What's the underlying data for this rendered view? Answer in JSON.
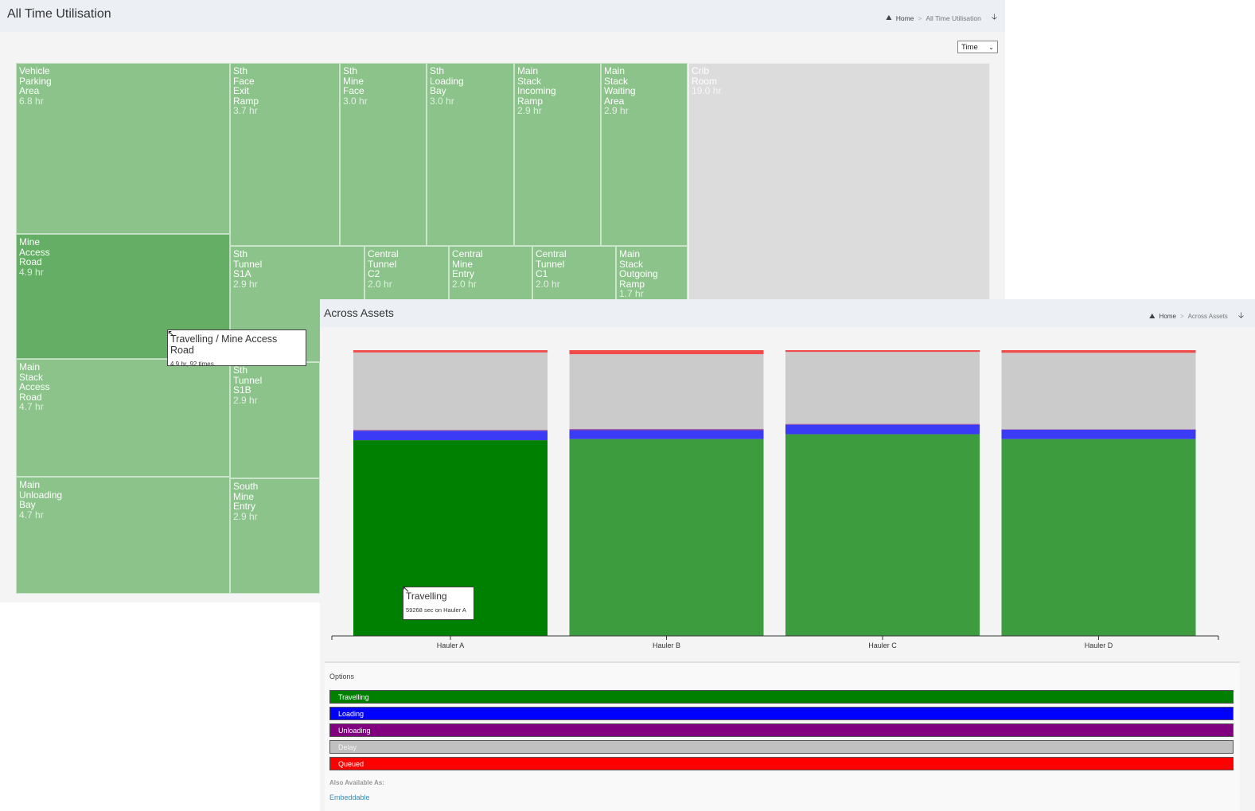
{
  "utilisation": {
    "title": "All Time Utilisation",
    "breadcrumb": {
      "home": "Home",
      "current": "All Time Utilisation"
    },
    "select": {
      "value": "Time"
    },
    "treemap": [
      {
        "name": "Vehicle Parking Area",
        "value": "6.8 hr"
      },
      {
        "name": "Mine Access Road",
        "value": "4.9 hr"
      },
      {
        "name": "Main Stack Access Road",
        "value": "4.7 hr"
      },
      {
        "name": "Main Unloading Bay",
        "value": "4.7 hr"
      },
      {
        "name": "Sth Face Exit Ramp",
        "value": "3.7 hr"
      },
      {
        "name": "Sth Mine Face",
        "value": "3.0 hr"
      },
      {
        "name": "Sth Loading Bay",
        "value": "3.0 hr"
      },
      {
        "name": "Main Stack Incoming Ramp",
        "value": "2.9 hr"
      },
      {
        "name": "Main Stack Waiting Area",
        "value": "2.9 hr"
      },
      {
        "name": "Sth Tunnel S1A",
        "value": "2.9 hr"
      },
      {
        "name": "Central Tunnel C2",
        "value": "2.0 hr"
      },
      {
        "name": "Central Mine Entry",
        "value": "2.0 hr"
      },
      {
        "name": "Central Tunnel C1",
        "value": "2.0 hr"
      },
      {
        "name": "Main Stack Outgoing Ramp",
        "value": "1.7 hr"
      },
      {
        "name": "Sth Tunnel S1B",
        "value": "2.9 hr"
      },
      {
        "name": "South Mine Entry",
        "value": "2.9 hr"
      },
      {
        "name": "Crib Room",
        "value": "19.0 hr"
      }
    ],
    "tooltip": {
      "title": "Travelling / Mine Access Road",
      "detail": "4.9 hr, 92 times"
    }
  },
  "assets": {
    "title": "Across Assets",
    "breadcrumb": {
      "home": "Home",
      "current": "Across Assets"
    },
    "tooltip": {
      "title": "Travelling",
      "detail": "59268 sec on Hauler A"
    },
    "options": {
      "title": "Options",
      "legend": [
        {
          "label": "Travelling",
          "color": "#008000"
        },
        {
          "label": "Loading",
          "color": "#0000ff"
        },
        {
          "label": "Unloading",
          "color": "#800080"
        },
        {
          "label": "Delay",
          "color": "#c0c0c0"
        },
        {
          "label": "Queued",
          "color": "#ff0000"
        }
      ],
      "also_available": "Also Available As:",
      "embed_link": "Embeddable"
    }
  },
  "chart_data": {
    "type": "bar",
    "stacked": true,
    "normalized": true,
    "categories": [
      "Hauler A",
      "Hauler B",
      "Hauler C",
      "Hauler D"
    ],
    "series": [
      {
        "name": "Travelling",
        "color": "#008000",
        "values": [
          0.685,
          0.689,
          0.706,
          0.689
        ]
      },
      {
        "name": "Loading",
        "color": "#0000ff",
        "values": [
          0.033,
          0.031,
          0.033,
          0.033
        ]
      },
      {
        "name": "Unloading",
        "color": "#800080",
        "values": [
          0.003,
          0.004,
          0.003,
          0.001
        ]
      },
      {
        "name": "Delay",
        "color": "#c0c0c0",
        "values": [
          0.271,
          0.262,
          0.252,
          0.268
        ]
      },
      {
        "name": "Queued",
        "color": "#ff0000",
        "values": [
          0.008,
          0.014,
          0.006,
          0.009
        ]
      }
    ],
    "ylim": [
      0,
      1
    ],
    "highlighted": {
      "category": "Hauler A",
      "series": "Travelling"
    }
  }
}
